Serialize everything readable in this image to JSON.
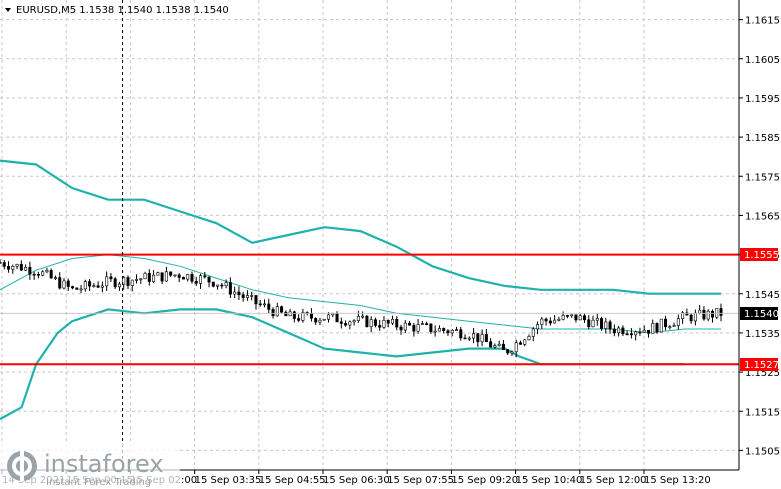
{
  "header": {
    "symbol_info": "EURUSD,M5  1.1538 1.1540 1.1538 1.1540"
  },
  "price_labels": {
    "level_high": "1.1555",
    "level_low": "1.1527",
    "current": "1.1540"
  },
  "logo": {
    "brand": "instaforex",
    "tagline": "Instant Forex Trading"
  },
  "colors": {
    "candles": "#000000",
    "bollinger": "#20b2aa",
    "level_lines": "#ff0000",
    "grid": "#c8c8c8",
    "crosshair": "#000000"
  },
  "chart_data": {
    "type": "candlestick",
    "title": "EURUSD,M5",
    "ylim": [
      1.15,
      1.162
    ],
    "yticks": [
      "1.1615",
      "1.1605",
      "1.1595",
      "1.1585",
      "1.1575",
      "1.1565",
      "1.1555",
      "1.1545",
      "1.1535",
      "1.1525",
      "1.1515",
      "1.1505"
    ],
    "xticks": [
      "14 Sep 2021",
      "15 Sep 00:15",
      "15 Sep 02:00",
      "15 Sep 03:35",
      "15 Sep 04:55",
      "15 Sep 06:30",
      "15 Sep 07:55",
      "15 Sep 09:20",
      "15 Sep 10:40",
      "15 Sep 12:00",
      "15 Sep 13:20"
    ],
    "horizontal_levels": [
      1.1555,
      1.1527
    ],
    "current_price": 1.154,
    "price_curve": [
      {
        "t": 0,
        "p": 1.1553
      },
      {
        "t": 0.05,
        "p": 1.1551
      },
      {
        "t": 0.1,
        "p": 1.1546
      },
      {
        "t": 0.15,
        "p": 1.1548
      },
      {
        "t": 0.2,
        "p": 1.1549
      },
      {
        "t": 0.25,
        "p": 1.155
      },
      {
        "t": 0.3,
        "p": 1.1548
      },
      {
        "t": 0.35,
        "p": 1.1543
      },
      {
        "t": 0.4,
        "p": 1.1539
      },
      {
        "t": 0.45,
        "p": 1.1539
      },
      {
        "t": 0.5,
        "p": 1.1538
      },
      {
        "t": 0.55,
        "p": 1.1537
      },
      {
        "t": 0.6,
        "p": 1.1536
      },
      {
        "t": 0.65,
        "p": 1.1535
      },
      {
        "t": 0.7,
        "p": 1.153
      },
      {
        "t": 0.72,
        "p": 1.1533
      },
      {
        "t": 0.75,
        "p": 1.1538
      },
      {
        "t": 0.8,
        "p": 1.1539
      },
      {
        "t": 0.85,
        "p": 1.1536
      },
      {
        "t": 0.9,
        "p": 1.1536
      },
      {
        "t": 0.95,
        "p": 1.1539
      },
      {
        "t": 1.0,
        "p": 1.154
      }
    ],
    "bands": {
      "upper": [
        {
          "t": 0,
          "p": 1.1579
        },
        {
          "t": 0.05,
          "p": 1.1578
        },
        {
          "t": 0.1,
          "p": 1.1572
        },
        {
          "t": 0.15,
          "p": 1.1569
        },
        {
          "t": 0.2,
          "p": 1.1569
        },
        {
          "t": 0.25,
          "p": 1.1566
        },
        {
          "t": 0.3,
          "p": 1.1563
        },
        {
          "t": 0.35,
          "p": 1.1558
        },
        {
          "t": 0.4,
          "p": 1.156
        },
        {
          "t": 0.45,
          "p": 1.1562
        },
        {
          "t": 0.5,
          "p": 1.1561
        },
        {
          "t": 0.55,
          "p": 1.1557
        },
        {
          "t": 0.6,
          "p": 1.1552
        },
        {
          "t": 0.65,
          "p": 1.1549
        },
        {
          "t": 0.7,
          "p": 1.1547
        },
        {
          "t": 0.75,
          "p": 1.1546
        },
        {
          "t": 0.8,
          "p": 1.1546
        },
        {
          "t": 0.85,
          "p": 1.1546
        },
        {
          "t": 0.9,
          "p": 1.1545
        },
        {
          "t": 0.95,
          "p": 1.1545
        },
        {
          "t": 1.0,
          "p": 1.1545
        }
      ],
      "middle": [
        {
          "t": 0,
          "p": 1.1546
        },
        {
          "t": 0.05,
          "p": 1.1551
        },
        {
          "t": 0.1,
          "p": 1.1554
        },
        {
          "t": 0.15,
          "p": 1.1555
        },
        {
          "t": 0.2,
          "p": 1.1554
        },
        {
          "t": 0.25,
          "p": 1.1552
        },
        {
          "t": 0.3,
          "p": 1.1549
        },
        {
          "t": 0.35,
          "p": 1.1546
        },
        {
          "t": 0.4,
          "p": 1.1544
        },
        {
          "t": 0.45,
          "p": 1.1543
        },
        {
          "t": 0.5,
          "p": 1.1542
        },
        {
          "t": 0.55,
          "p": 1.154
        },
        {
          "t": 0.6,
          "p": 1.1539
        },
        {
          "t": 0.65,
          "p": 1.1538
        },
        {
          "t": 0.7,
          "p": 1.1537
        },
        {
          "t": 0.75,
          "p": 1.1536
        },
        {
          "t": 0.8,
          "p": 1.1536
        },
        {
          "t": 0.85,
          "p": 1.1536
        },
        {
          "t": 0.9,
          "p": 1.1535
        },
        {
          "t": 0.95,
          "p": 1.1536
        },
        {
          "t": 1.0,
          "p": 1.1536
        }
      ],
      "lower": [
        {
          "t": 0,
          "p": 1.1513
        },
        {
          "t": 0.03,
          "p": 1.1516
        },
        {
          "t": 0.05,
          "p": 1.1527
        },
        {
          "t": 0.08,
          "p": 1.1535
        },
        {
          "t": 0.1,
          "p": 1.1538
        },
        {
          "t": 0.15,
          "p": 1.1541
        },
        {
          "t": 0.2,
          "p": 1.154
        },
        {
          "t": 0.25,
          "p": 1.1541
        },
        {
          "t": 0.3,
          "p": 1.1541
        },
        {
          "t": 0.35,
          "p": 1.1539
        },
        {
          "t": 0.4,
          "p": 1.1535
        },
        {
          "t": 0.45,
          "p": 1.1531
        },
        {
          "t": 0.5,
          "p": 1.153
        },
        {
          "t": 0.55,
          "p": 1.1529
        },
        {
          "t": 0.6,
          "p": 1.153
        },
        {
          "t": 0.65,
          "p": 1.1531
        },
        {
          "t": 0.7,
          "p": 1.1531
        },
        {
          "t": 0.72,
          "p": 1.1529
        },
        {
          "t": 0.75,
          "p": 1.1527
        },
        {
          "t": 0.8,
          "p": 1.1527
        },
        {
          "t": 0.85,
          "p": 1.1527
        },
        {
          "t": 0.9,
          "p": 1.1527
        },
        {
          "t": 0.95,
          "p": 1.1527
        }
      ]
    },
    "crosshair_t": 0.17,
    "grid": true
  }
}
